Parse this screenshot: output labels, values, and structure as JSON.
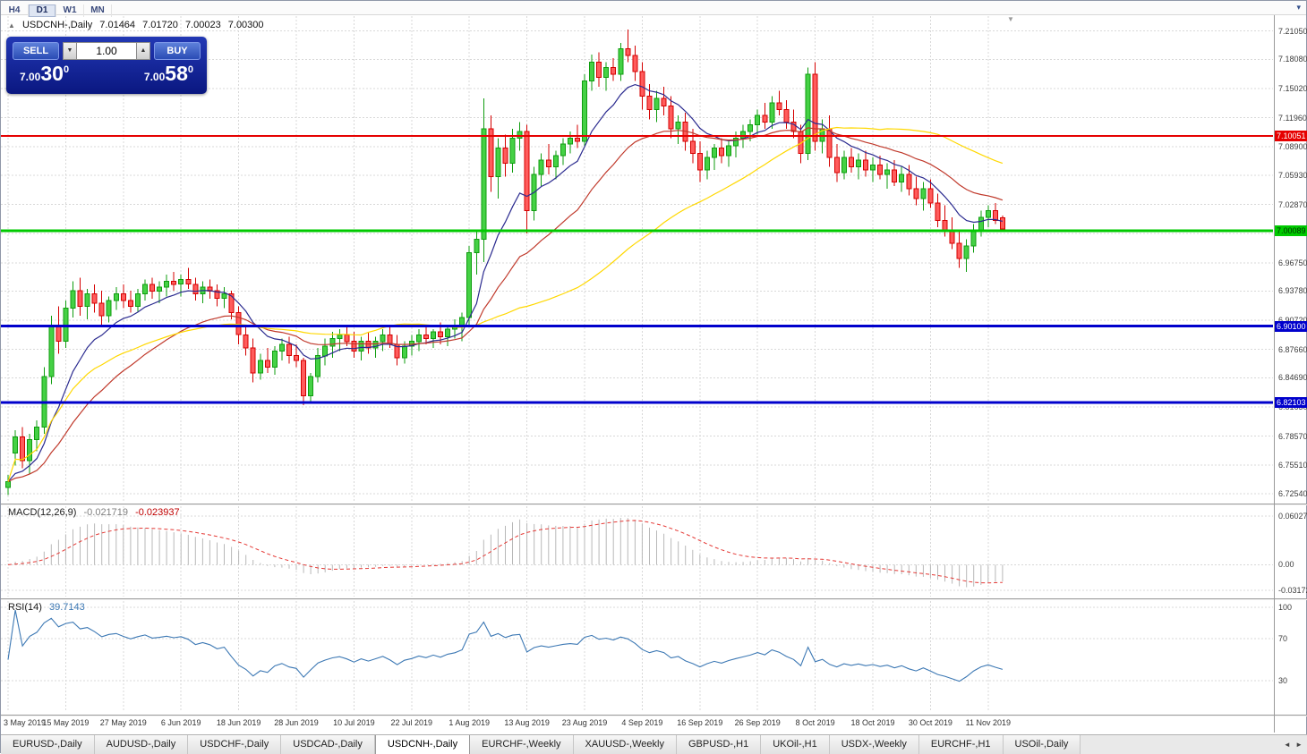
{
  "toolbar": {
    "timeframes": [
      "H4",
      "D1",
      "W1",
      "MN"
    ],
    "active": "D1"
  },
  "icons": {
    "collapse": "▲",
    "chart_shift": "▼",
    "toolbar_more": "▾",
    "tab_scroll_left": "◄",
    "tab_scroll_right": "►",
    "vol_up": "▲",
    "vol_down": "▼"
  },
  "chart_header": {
    "symbol_title": "USDCNH-,Daily",
    "open": "7.01464",
    "high": "7.01720",
    "low": "7.00023",
    "close": "7.00300"
  },
  "trade_panel": {
    "sell_label": "SELL",
    "buy_label": "BUY",
    "volume": "1.00",
    "sell_price_main": "7.00",
    "sell_price_big": "30",
    "sell_price_sup": "0",
    "buy_price_main": "7.00",
    "buy_price_big": "58",
    "buy_price_sup": "0"
  },
  "price_scale": [
    "7.21050",
    "7.18080",
    "7.15020",
    "7.11960",
    "7.08900",
    "7.05930",
    "7.02870",
    "6.99810",
    "6.96750",
    "6.93780",
    "6.90720",
    "6.87660",
    "6.84690",
    "6.81630",
    "6.78570",
    "6.75510",
    "6.72540"
  ],
  "levels": [
    {
      "label": "7.10051",
      "price": 7.10051,
      "color": "#e60000",
      "text": "#ffffff",
      "thickness": 2
    },
    {
      "label": "7.00089",
      "price": 7.00089,
      "color": "#00ca00",
      "text": "#003300",
      "thickness": 3
    },
    {
      "label": "6.90100",
      "price": 6.901,
      "color": "#0000cc",
      "text": "#ffffff",
      "thickness": 3
    },
    {
      "label": "6.82103",
      "price": 6.82103,
      "color": "#0000cc",
      "text": "#ffffff",
      "thickness": 3
    }
  ],
  "chart_data": {
    "type": "candlestick",
    "title": "USDCNH-,Daily",
    "y_range": [
      6.715,
      7.228
    ],
    "up_color": "#45d145",
    "up_border": "#0f9d0f",
    "down_color": "#ff5c5c",
    "down_border": "#d40000",
    "x_tick_indices": [
      0,
      8,
      16,
      24,
      32,
      40,
      48,
      56,
      64,
      72,
      80,
      88,
      96,
      104,
      112,
      120,
      128,
      136
    ],
    "x_tick_labels": [
      "3 May 2019",
      "15 May 2019",
      "27 May 2019",
      "6 Jun 2019",
      "18 Jun 2019",
      "28 Jun 2019",
      "10 Jul 2019",
      "22 Jul 2019",
      "1 Aug 2019",
      "13 Aug 2019",
      "23 Aug 2019",
      "4 Sep 2019",
      "16 Sep 2019",
      "26 Sep 2019",
      "8 Oct 2019",
      "18 Oct 2019",
      "30 Oct 2019",
      "11 Nov 2019"
    ],
    "overlays": [
      {
        "name": "ma-fast-line",
        "method": "ema",
        "period": 10,
        "color": "#2a2a8f"
      },
      {
        "name": "ma-medium-line",
        "method": "ema",
        "period": 25,
        "color": "#c0392b"
      },
      {
        "name": "ma-slow-line",
        "method": "sma",
        "period": 50,
        "color": "#ffd800"
      }
    ],
    "ohlc": [
      [
        6.732,
        6.745,
        6.724,
        6.738
      ],
      [
        6.768,
        6.792,
        6.755,
        6.785
      ],
      [
        6.785,
        6.795,
        6.752,
        6.76
      ],
      [
        6.76,
        6.788,
        6.746,
        6.782
      ],
      [
        6.782,
        6.802,
        6.77,
        6.795
      ],
      [
        6.795,
        6.858,
        6.788,
        6.848
      ],
      [
        6.848,
        6.912,
        6.84,
        6.902
      ],
      [
        6.902,
        6.922,
        6.872,
        6.885
      ],
      [
        6.885,
        6.928,
        6.878,
        6.92
      ],
      [
        6.92,
        6.948,
        6.91,
        6.938
      ],
      [
        6.938,
        6.952,
        6.912,
        6.922
      ],
      [
        6.922,
        6.94,
        6.908,
        6.935
      ],
      [
        6.935,
        6.945,
        6.915,
        6.925
      ],
      [
        6.925,
        6.938,
        6.902,
        6.912
      ],
      [
        6.912,
        6.932,
        6.905,
        6.928
      ],
      [
        6.928,
        6.942,
        6.918,
        6.935
      ],
      [
        6.935,
        6.945,
        6.92,
        6.928
      ],
      [
        6.928,
        6.938,
        6.915,
        6.922
      ],
      [
        6.922,
        6.94,
        6.916,
        6.935
      ],
      [
        6.935,
        6.95,
        6.928,
        6.945
      ],
      [
        6.945,
        6.952,
        6.93,
        6.938
      ],
      [
        6.938,
        6.948,
        6.925,
        6.942
      ],
      [
        6.942,
        6.955,
        6.932,
        6.948
      ],
      [
        6.948,
        6.958,
        6.938,
        6.945
      ],
      [
        6.945,
        6.955,
        6.932,
        6.95
      ],
      [
        6.95,
        6.962,
        6.94,
        6.945
      ],
      [
        6.945,
        6.952,
        6.928,
        6.935
      ],
      [
        6.935,
        6.948,
        6.925,
        6.942
      ],
      [
        6.942,
        6.95,
        6.93,
        6.938
      ],
      [
        6.938,
        6.945,
        6.922,
        6.93
      ],
      [
        6.93,
        6.942,
        6.92,
        6.935
      ],
      [
        6.935,
        6.938,
        6.908,
        6.915
      ],
      [
        6.915,
        6.922,
        6.882,
        6.892
      ],
      [
        6.892,
        6.902,
        6.87,
        6.878
      ],
      [
        6.878,
        6.888,
        6.842,
        6.852
      ],
      [
        6.852,
        6.872,
        6.845,
        6.865
      ],
      [
        6.865,
        6.878,
        6.852,
        6.858
      ],
      [
        6.858,
        6.88,
        6.85,
        6.875
      ],
      [
        6.875,
        6.888,
        6.865,
        6.882
      ],
      [
        6.882,
        6.89,
        6.862,
        6.87
      ],
      [
        6.87,
        6.882,
        6.858,
        6.865
      ],
      [
        6.865,
        6.868,
        6.818,
        6.828
      ],
      [
        6.828,
        6.852,
        6.82,
        6.848
      ],
      [
        6.848,
        6.878,
        6.842,
        6.87
      ],
      [
        6.87,
        6.888,
        6.86,
        6.88
      ],
      [
        6.88,
        6.895,
        6.868,
        6.888
      ],
      [
        6.888,
        6.898,
        6.875,
        6.892
      ],
      [
        6.892,
        6.902,
        6.88,
        6.885
      ],
      [
        6.885,
        6.895,
        6.868,
        6.875
      ],
      [
        6.875,
        6.89,
        6.865,
        6.885
      ],
      [
        6.885,
        6.895,
        6.872,
        6.878
      ],
      [
        6.878,
        6.89,
        6.868,
        6.885
      ],
      [
        6.885,
        6.898,
        6.875,
        6.892
      ],
      [
        6.892,
        6.9,
        6.878,
        6.882
      ],
      [
        6.882,
        6.892,
        6.86,
        6.868
      ],
      [
        6.868,
        6.885,
        6.862,
        6.88
      ],
      [
        6.88,
        6.892,
        6.87,
        6.885
      ],
      [
        6.885,
        6.898,
        6.875,
        6.892
      ],
      [
        6.892,
        6.902,
        6.882,
        6.888
      ],
      [
        6.888,
        6.898,
        6.878,
        6.895
      ],
      [
        6.895,
        6.905,
        6.882,
        6.89
      ],
      [
        6.89,
        6.902,
        6.88,
        6.898
      ],
      [
        6.898,
        6.908,
        6.888,
        6.902
      ],
      [
        6.902,
        6.915,
        6.885,
        6.91
      ],
      [
        6.91,
        6.985,
        6.902,
        6.978
      ],
      [
        6.978,
        7.0,
        6.955,
        6.992
      ],
      [
        6.992,
        7.14,
        6.968,
        7.108
      ],
      [
        7.108,
        7.122,
        7.042,
        7.058
      ],
      [
        7.058,
        7.098,
        7.035,
        7.088
      ],
      [
        7.088,
        7.102,
        7.058,
        7.072
      ],
      [
        7.072,
        7.108,
        7.062,
        7.098
      ],
      [
        7.098,
        7.115,
        7.085,
        7.105
      ],
      [
        7.105,
        7.112,
        6.998,
        7.022
      ],
      [
        7.022,
        7.068,
        7.012,
        7.06
      ],
      [
        7.06,
        7.082,
        7.048,
        7.075
      ],
      [
        7.075,
        7.092,
        7.06,
        7.068
      ],
      [
        7.068,
        7.085,
        7.055,
        7.08
      ],
      [
        7.08,
        7.098,
        7.07,
        7.092
      ],
      [
        7.092,
        7.105,
        7.082,
        7.098
      ],
      [
        7.098,
        7.112,
        7.088,
        7.095
      ],
      [
        7.095,
        7.165,
        7.09,
        7.158
      ],
      [
        7.158,
        7.186,
        7.148,
        7.178
      ],
      [
        7.178,
        7.188,
        7.152,
        7.162
      ],
      [
        7.162,
        7.178,
        7.148,
        7.172
      ],
      [
        7.172,
        7.182,
        7.158,
        7.165
      ],
      [
        7.165,
        7.198,
        7.158,
        7.192
      ],
      [
        7.192,
        7.212,
        7.178,
        7.185
      ],
      [
        7.185,
        7.195,
        7.158,
        7.168
      ],
      [
        7.168,
        7.178,
        7.128,
        7.142
      ],
      [
        7.142,
        7.155,
        7.118,
        7.128
      ],
      [
        7.128,
        7.148,
        7.115,
        7.14
      ],
      [
        7.14,
        7.152,
        7.122,
        7.132
      ],
      [
        7.132,
        7.142,
        7.098,
        7.108
      ],
      [
        7.108,
        7.122,
        7.092,
        7.115
      ],
      [
        7.115,
        7.125,
        7.085,
        7.095
      ],
      [
        7.095,
        7.108,
        7.072,
        7.082
      ],
      [
        7.082,
        7.095,
        7.052,
        7.065
      ],
      [
        7.065,
        7.085,
        7.055,
        7.078
      ],
      [
        7.078,
        7.092,
        7.065,
        7.088
      ],
      [
        7.088,
        7.098,
        7.072,
        7.08
      ],
      [
        7.08,
        7.095,
        7.068,
        7.09
      ],
      [
        7.09,
        7.105,
        7.078,
        7.098
      ],
      [
        7.098,
        7.112,
        7.088,
        7.105
      ],
      [
        7.105,
        7.118,
        7.095,
        7.112
      ],
      [
        7.112,
        7.128,
        7.102,
        7.122
      ],
      [
        7.122,
        7.135,
        7.108,
        7.115
      ],
      [
        7.115,
        7.142,
        7.108,
        7.135
      ],
      [
        7.135,
        7.148,
        7.122,
        7.128
      ],
      [
        7.128,
        7.138,
        7.108,
        7.115
      ],
      [
        7.115,
        7.128,
        7.098,
        7.105
      ],
      [
        7.105,
        7.112,
        7.072,
        7.082
      ],
      [
        7.082,
        7.172,
        7.075,
        7.165
      ],
      [
        7.165,
        7.178,
        7.085,
        7.095
      ],
      [
        7.095,
        7.118,
        7.082,
        7.108
      ],
      [
        7.108,
        7.122,
        7.068,
        7.078
      ],
      [
        7.078,
        7.092,
        7.052,
        7.062
      ],
      [
        7.062,
        7.085,
        7.055,
        7.078
      ],
      [
        7.078,
        7.088,
        7.062,
        7.068
      ],
      [
        7.068,
        7.082,
        7.055,
        7.075
      ],
      [
        7.075,
        7.085,
        7.058,
        7.065
      ],
      [
        7.065,
        7.078,
        7.052,
        7.07
      ],
      [
        7.07,
        7.08,
        7.055,
        7.06
      ],
      [
        7.06,
        7.072,
        7.045,
        7.065
      ],
      [
        7.065,
        7.075,
        7.048,
        7.052
      ],
      [
        7.052,
        7.068,
        7.042,
        7.06
      ],
      [
        7.06,
        7.07,
        7.038,
        7.045
      ],
      [
        7.045,
        7.058,
        7.028,
        7.035
      ],
      [
        7.035,
        7.052,
        7.022,
        7.045
      ],
      [
        7.045,
        7.055,
        7.025,
        7.03
      ],
      [
        7.03,
        7.04,
        7.005,
        7.012
      ],
      [
        7.012,
        7.028,
        6.995,
        7.002
      ],
      [
        7.002,
        7.015,
        6.982,
        6.988
      ],
      [
        6.988,
        7.0,
        6.962,
        6.972
      ],
      [
        6.972,
        6.992,
        6.958,
        6.985
      ],
      [
        6.985,
        7.008,
        6.978,
        7.002
      ],
      [
        7.002,
        7.022,
        6.995,
        7.015
      ],
      [
        7.015,
        7.028,
        7.005,
        7.022
      ],
      [
        7.022,
        7.03,
        7.008,
        7.012
      ],
      [
        7.0146,
        7.0172,
        7.0002,
        7.003
      ]
    ]
  },
  "macd_panel": {
    "label": "MACD(12,26,9)",
    "value_main": "-0.021719",
    "value_signal": "-0.023937",
    "fast": 12,
    "slow": 26,
    "signal": 9,
    "bar_color": "#b8b8b8",
    "signal_color": "#e53935",
    "scale": [
      {
        "v": 0.060273,
        "label": "0.060273"
      },
      {
        "v": 0,
        "label": "0.00"
      },
      {
        "v": -0.03172,
        "label": "-0.03172"
      }
    ]
  },
  "rsi_panel": {
    "label": "RSI(14)",
    "value": "39.7143",
    "period": 14,
    "line_color": "#3c78b4",
    "scale": [
      {
        "v": 100,
        "label": "100"
      },
      {
        "v": 70,
        "label": "70"
      },
      {
        "v": 30,
        "label": "30"
      }
    ]
  },
  "tabs": {
    "items": [
      {
        "label": "EURUSD-,Daily",
        "active": false
      },
      {
        "label": "AUDUSD-,Daily",
        "active": false
      },
      {
        "label": "USDCHF-,Daily",
        "active": false
      },
      {
        "label": "USDCAD-,Daily",
        "active": false
      },
      {
        "label": "USDCNH-,Daily",
        "active": true
      },
      {
        "label": "EURCHF-,Weekly",
        "active": false
      },
      {
        "label": "XAUUSD-,Weekly",
        "active": false
      },
      {
        "label": "GBPUSD-,H1",
        "active": false
      },
      {
        "label": "UKOil-,H1",
        "active": false
      },
      {
        "label": "USDX-,Weekly",
        "active": false
      },
      {
        "label": "EURCHF-,H1",
        "active": false
      },
      {
        "label": "USOil-,Daily",
        "active": false
      }
    ]
  }
}
